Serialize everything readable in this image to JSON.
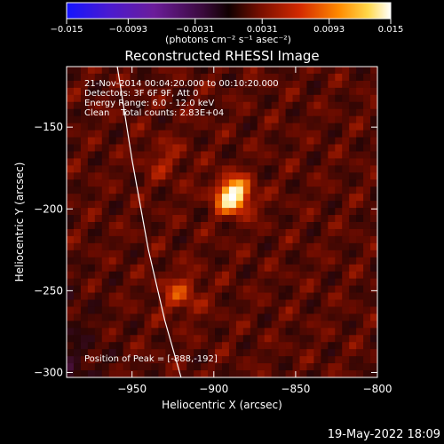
{
  "colorbar": {
    "tick_labels": [
      "-0.015",
      "-0.0093",
      "-0.0031",
      "0.0031",
      "0.0093",
      "0.015"
    ],
    "range": [
      -0.015,
      0.015
    ],
    "units": "(photons cm⁻² s⁻¹ asec⁻²)"
  },
  "plot": {
    "title": "Reconstructed RHESSI Image",
    "info_lines": [
      "21-Nov-2014 00:04:20.000 to 00:10:20.000",
      "Detectors: 3F 6F 9F, Att 0",
      "Energy Range: 6.0 - 12.0 keV",
      "Clean    Total counts: 2.83E+04"
    ],
    "peak_text": "Position of Peak = [-888,-192]",
    "footer_date": "19-May-2022 18:09"
  },
  "chart_data": {
    "type": "heatmap",
    "title": "Reconstructed RHESSI Image",
    "xlabel": "Heliocentric X (arcsec)",
    "ylabel": "Heliocentric Y (arcsec)",
    "xlim": [
      -990,
      -800
    ],
    "ylim": [
      -303,
      -113
    ],
    "xticks": [
      -950,
      -900,
      -850,
      -800
    ],
    "yticks": [
      -150,
      -200,
      -250,
      -300
    ],
    "xtick_labels": [
      "−950",
      "−900",
      "−850",
      "−800"
    ],
    "ytick_labels": [
      "−150",
      "−200",
      "−250",
      "−300"
    ],
    "colormap": "red-temperature",
    "peak": {
      "x": -888,
      "y": -192
    },
    "sources": [
      {
        "x": -888,
        "y": -192,
        "value": 0.015
      },
      {
        "x": -920,
        "y": -252,
        "value": 0.005
      },
      {
        "x": -930,
        "y": -170,
        "value": 0.003
      }
    ],
    "limb_curve": [
      {
        "x": -959,
        "y": -113
      },
      {
        "x": -950,
        "y": -170
      },
      {
        "x": -940,
        "y": -225
      },
      {
        "x": -930,
        "y": -268
      },
      {
        "x": -920,
        "y": -303
      }
    ]
  }
}
